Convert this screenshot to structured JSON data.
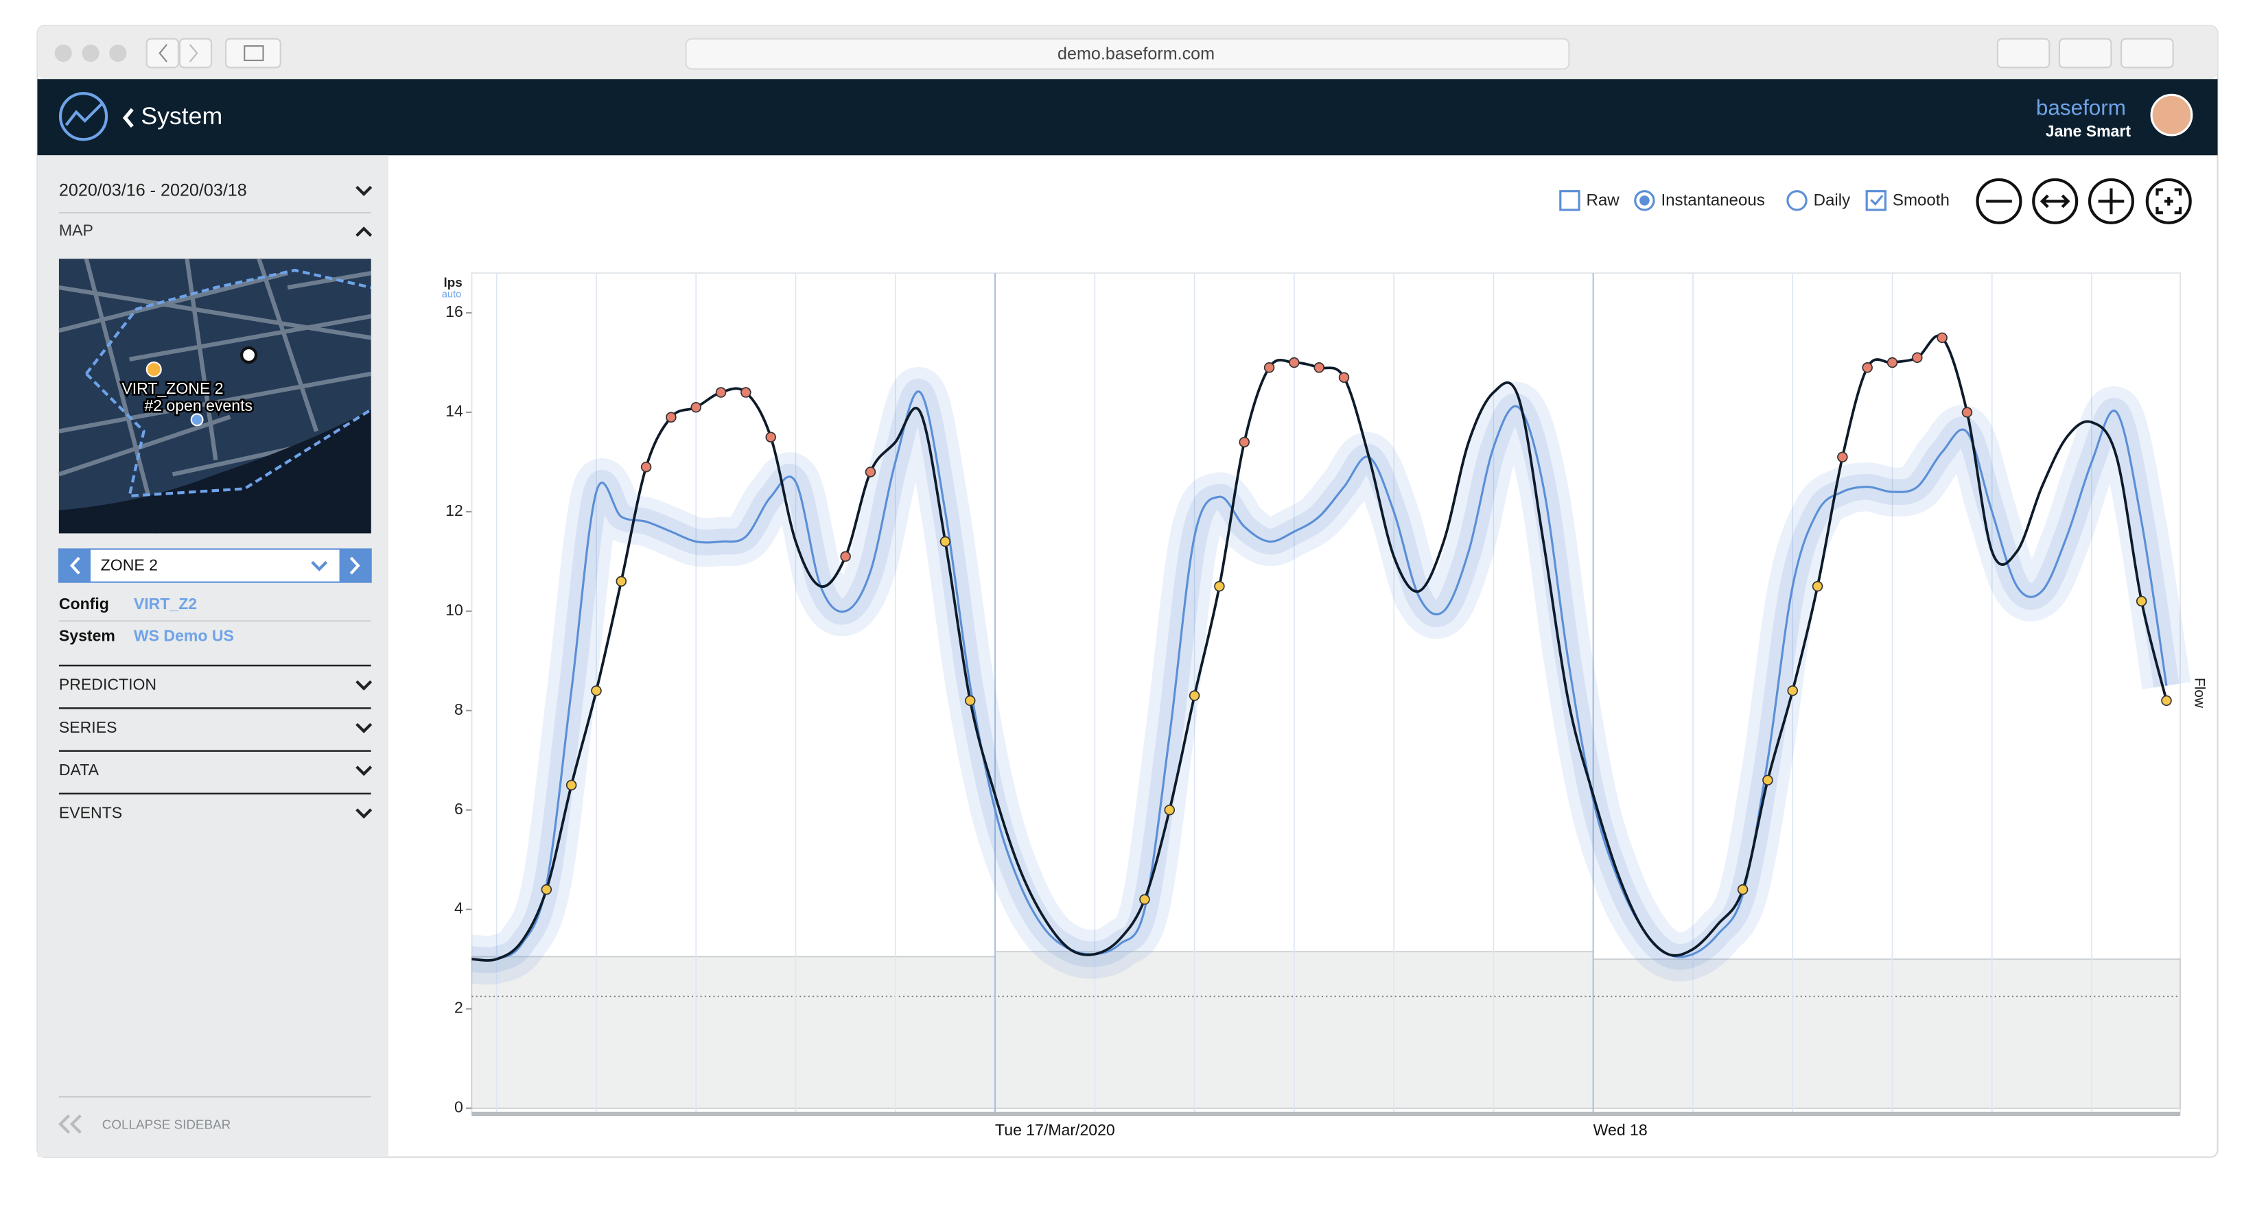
{
  "browser": {
    "url": "demo.baseform.com"
  },
  "header": {
    "title": "System",
    "brand": "baseform",
    "user": "Jane Smart"
  },
  "sidebar": {
    "date_range": "2020/03/16 - 2020/03/18",
    "map": {
      "title": "MAP",
      "labels": [
        "VIRT_ZONE 2",
        "#2 open events"
      ]
    },
    "zone": "ZONE 2",
    "fields": [
      {
        "label": "Config",
        "value": "VIRT_Z2"
      },
      {
        "label": "System",
        "value": "WS Demo US"
      }
    ],
    "sections": [
      "PREDICTION",
      "SERIES",
      "DATA",
      "EVENTS"
    ],
    "collapse": "COLLAPSE SIDEBAR"
  },
  "controls": {
    "options": [
      {
        "label": "Raw",
        "type": "checkbox",
        "checked": false
      },
      {
        "label": "Instantaneous",
        "type": "radio",
        "checked": true
      },
      {
        "label": "Daily",
        "type": "radio",
        "checked": false
      },
      {
        "label": "Smooth",
        "type": "checkbox",
        "checked": true
      }
    ]
  },
  "chart_data": {
    "type": "line",
    "y_label": "lps",
    "y_sublabel": "auto",
    "right_label": "Flow",
    "categories": [
      null,
      null,
      null,
      null,
      null,
      null,
      null,
      null,
      null,
      null,
      null,
      null,
      null,
      null,
      null,
      null,
      null,
      null,
      null,
      null,
      null,
      "Tue 17/Mar/2020",
      null,
      null,
      null,
      null,
      null,
      null,
      null,
      null,
      null,
      null,
      null,
      null,
      null,
      null,
      null,
      null,
      null,
      null,
      null,
      null,
      null,
      null,
      null,
      "Wed 18",
      null,
      null,
      null,
      null,
      null,
      null,
      null,
      null,
      null,
      null,
      null,
      null,
      null,
      null,
      null,
      null,
      null,
      null,
      null,
      null,
      null,
      null,
      null
    ],
    "ylim": [
      0,
      16.8
    ],
    "yticks": [
      0,
      2,
      4,
      6,
      8,
      10,
      12,
      14,
      16
    ],
    "grid": true,
    "series": [
      {
        "color": "#5b8fd6",
        "band": true,
        "values": [
          3.0,
          3.0,
          3.3,
          4.5,
          8.4,
          12.4,
          11.9,
          11.8,
          11.6,
          11.4,
          11.4,
          11.5,
          12.3,
          12.6,
          10.5,
          10.0,
          10.8,
          13.0,
          14.4,
          12.0,
          8.5,
          6.0,
          4.5,
          3.6,
          3.2,
          3.1,
          3.3,
          4.0,
          7.5,
          11.5,
          12.3,
          11.7,
          11.4,
          11.6,
          11.9,
          12.5,
          13.1,
          12.0,
          10.3,
          10.0,
          11.2,
          13.3,
          14.1,
          12.5,
          9.0,
          6.2,
          4.6,
          3.6,
          3.1,
          3.1,
          3.5,
          4.3,
          7.0,
          10.5,
          12.0,
          12.4,
          12.5,
          12.4,
          12.5,
          13.2,
          13.6,
          12.0,
          10.5,
          10.4,
          11.5,
          13.0,
          14.0,
          11.8,
          8.5
        ]
      },
      {
        "color": "#0d1b2a",
        "values": [
          3.0,
          3.0,
          3.35,
          4.4,
          6.5,
          8.4,
          10.6,
          12.9,
          13.9,
          14.1,
          14.4,
          14.4,
          13.5,
          11.4,
          10.5,
          11.1,
          12.8,
          13.4,
          14.0,
          11.4,
          8.2,
          6.3,
          4.8,
          3.8,
          3.2,
          3.1,
          3.4,
          4.2,
          6.0,
          8.3,
          10.5,
          13.4,
          14.9,
          15.0,
          14.9,
          14.7,
          13.1,
          11.1,
          10.4,
          11.4,
          13.4,
          14.4,
          14.3,
          11.4,
          8.2,
          6.3,
          4.7,
          3.6,
          3.1,
          3.2,
          3.7,
          4.4,
          6.6,
          8.4,
          10.5,
          13.1,
          14.9,
          15.0,
          15.1,
          15.5,
          14.0,
          11.2,
          11.2,
          12.5,
          13.5,
          13.8,
          13.1,
          10.2,
          8.2
        ]
      },
      {
        "color": "#f5c84c",
        "style": "points",
        "values": [
          null,
          null,
          null,
          4.4,
          6.5,
          8.4,
          10.6,
          null,
          null,
          null,
          null,
          null,
          null,
          null,
          null,
          null,
          null,
          null,
          null,
          11.4,
          8.2,
          null,
          null,
          null,
          null,
          null,
          null,
          4.2,
          6.0,
          8.3,
          10.5,
          null,
          null,
          null,
          null,
          null,
          null,
          null,
          null,
          null,
          null,
          null,
          null,
          null,
          null,
          null,
          null,
          null,
          null,
          null,
          null,
          4.4,
          6.6,
          8.4,
          10.5,
          null,
          null,
          null,
          null,
          null,
          null,
          null,
          null,
          null,
          null,
          null,
          null,
          10.2,
          8.2
        ]
      },
      {
        "color": "#e8806e",
        "style": "points",
        "values": [
          null,
          null,
          null,
          null,
          null,
          null,
          null,
          12.9,
          13.9,
          14.1,
          14.4,
          14.4,
          13.5,
          null,
          null,
          11.1,
          12.8,
          null,
          null,
          null,
          null,
          null,
          null,
          null,
          null,
          null,
          null,
          null,
          null,
          null,
          null,
          13.4,
          14.9,
          15.0,
          14.9,
          14.7,
          null,
          null,
          null,
          null,
          null,
          null,
          null,
          null,
          null,
          null,
          null,
          null,
          null,
          null,
          null,
          null,
          null,
          null,
          null,
          13.1,
          14.9,
          15.0,
          15.1,
          15.5,
          14.0,
          null,
          null,
          null,
          null,
          null,
          null,
          null,
          null
        ]
      }
    ],
    "baseline": {
      "values": [
        3.05,
        3.15,
        3.0
      ],
      "color": "#eef0ef"
    },
    "threshold": 2.25
  }
}
